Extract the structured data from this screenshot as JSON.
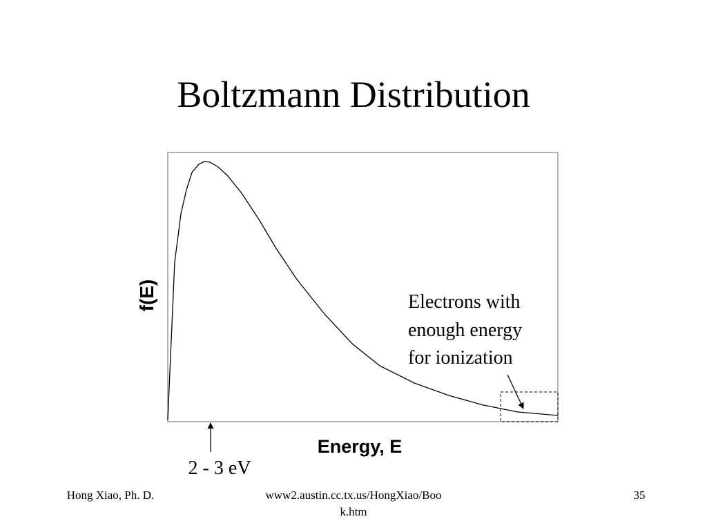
{
  "header": {
    "title": "Boltzmann Distribution"
  },
  "plot": {
    "y_label": "f(E)",
    "x_label": "Energy, E",
    "annotation_lines": [
      "Electrons with",
      "enough energy",
      "for ionization"
    ],
    "peak_label": "2 - 3 eV"
  },
  "footer": {
    "author": "Hong Xiao, Ph. D.",
    "url_lines": [
      "www2.austin.cc.tx.us/HongXiao/Boo",
      "k.htm"
    ],
    "page": "35"
  }
}
